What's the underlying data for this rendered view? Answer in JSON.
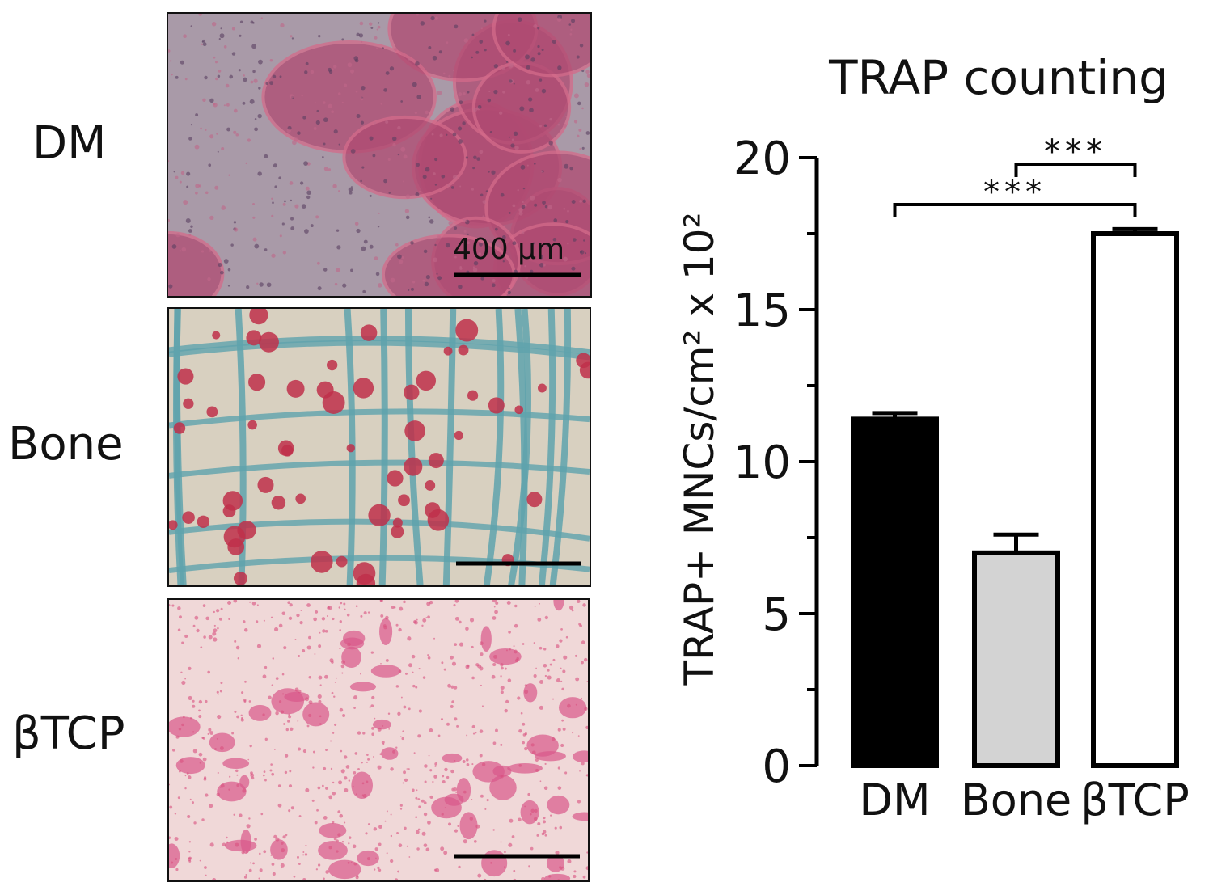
{
  "panels": [
    {
      "label": "DM",
      "scale_bar_text": "400 µm"
    },
    {
      "label": "Bone"
    },
    {
      "label": "βTCP"
    }
  ],
  "colors": {
    "dm_bar": "#000000",
    "bone_bar": "#d3d3d3",
    "btcp_bar": "#ffffff",
    "dm_image": "#b0476a",
    "bone_image": "#5fa3ad",
    "btcp_image": "#d9588a"
  },
  "chart_data": {
    "type": "bar",
    "title": "TRAP counting",
    "ylabel": "TRAP+ MNCs/cm² x 10²",
    "xlabel": "",
    "categories": [
      "DM",
      "Bone",
      "βTCP"
    ],
    "values": [
      11.4,
      7.0,
      17.5
    ],
    "error": [
      0.2,
      0.6,
      0.15
    ],
    "ylim": [
      0,
      20
    ],
    "yticks": [
      0,
      5,
      10,
      15,
      20
    ],
    "grid": false,
    "significance": [
      {
        "from": "DM",
        "to": "βTCP",
        "label": "***"
      },
      {
        "from": "Bone",
        "to": "βTCP",
        "label": "***"
      }
    ]
  }
}
